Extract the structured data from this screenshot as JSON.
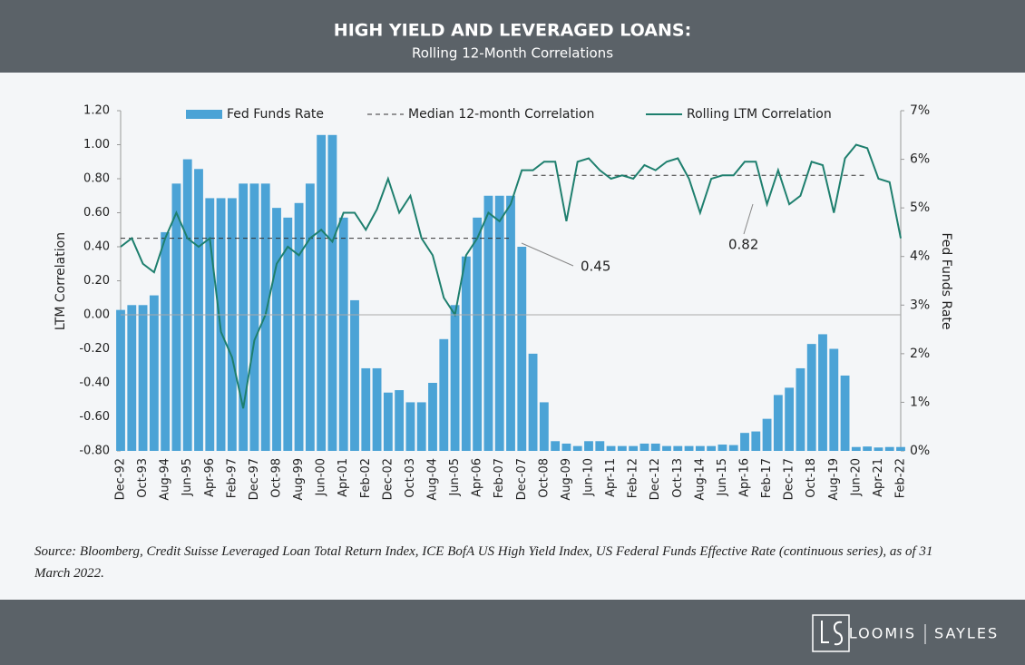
{
  "chart_data": {
    "type": "combo",
    "title": "HIGH YIELD AND LEVERAGED LOANS:",
    "subtitle": "Rolling 12-Month Correlations",
    "y_label": "LTM Correlation",
    "y2_label": "Fed Funds Rate",
    "categories": [
      "Dec-92",
      null,
      "Oct-93",
      null,
      "Aug-94",
      null,
      "Jun-95",
      null,
      "Apr-96",
      null,
      "Feb-97",
      null,
      "Dec-97",
      null,
      "Oct-98",
      null,
      "Aug-99",
      null,
      "Jun-00",
      null,
      "Apr-01",
      null,
      "Feb-02",
      null,
      "Dec-02",
      null,
      "Oct-03",
      null,
      "Aug-04",
      null,
      "Jun-05",
      null,
      "Apr-06",
      null,
      "Feb-07",
      null,
      "Dec-07",
      null,
      "Oct-08",
      null,
      "Aug-09",
      null,
      "Jun-10",
      null,
      "Apr-11",
      null,
      "Feb-12",
      null,
      "Dec-12",
      null,
      "Oct-13",
      null,
      "Aug-14",
      null,
      "Jun-15",
      null,
      "Apr-16",
      null,
      "Feb-17",
      null,
      "Dec-17",
      null,
      "Oct-18",
      null,
      "Aug-19",
      null,
      "Jun-20",
      null,
      "Apr-21",
      null,
      "Feb-22"
    ],
    "series": [
      {
        "name": "Fed Funds Rate",
        "type": "bar",
        "axis": "y2",
        "color": "#4ba3d6",
        "values": [
          2.9,
          3.0,
          3.0,
          3.2,
          4.5,
          5.5,
          6.0,
          5.8,
          5.2,
          5.2,
          5.2,
          5.5,
          5.5,
          5.5,
          5.0,
          4.8,
          5.1,
          5.5,
          6.5,
          6.5,
          4.8,
          3.1,
          1.7,
          1.7,
          1.2,
          1.25,
          1.0,
          1.0,
          1.4,
          2.3,
          3.0,
          4.0,
          4.8,
          5.25,
          5.25,
          5.25,
          4.2,
          2.0,
          1.0,
          0.2,
          0.15,
          0.1,
          0.2,
          0.2,
          0.1,
          0.1,
          0.1,
          0.15,
          0.15,
          0.1,
          0.1,
          0.1,
          0.1,
          0.1,
          0.13,
          0.12,
          0.37,
          0.4,
          0.66,
          1.15,
          1.3,
          1.7,
          2.2,
          2.4,
          2.1,
          1.55,
          0.08,
          0.09,
          0.07,
          0.08,
          0.08
        ]
      },
      {
        "name": "Median 12-month Correlation",
        "type": "line",
        "dashed": true,
        "color": "#333333",
        "values": [
          0.45,
          0.45,
          0.45,
          0.45,
          0.45,
          0.45,
          0.45,
          0.45,
          0.45,
          0.45,
          0.45,
          0.45,
          0.45,
          0.45,
          0.45,
          0.45,
          0.45,
          0.45,
          0.45,
          0.45,
          0.45,
          0.45,
          0.45,
          0.45,
          0.45,
          0.45,
          0.45,
          0.45,
          0.45,
          0.45,
          0.45,
          0.45,
          0.45,
          0.45,
          0.45,
          0.45,
          null,
          0.82,
          0.82,
          0.82,
          0.82,
          0.82,
          0.82,
          0.82,
          0.82,
          0.82,
          0.82,
          0.82,
          0.82,
          0.82,
          0.82,
          0.82,
          0.82,
          0.82,
          0.82,
          0.82,
          0.82,
          0.82,
          0.82,
          0.82,
          0.82,
          0.82,
          0.82,
          0.82,
          0.82,
          0.82,
          0.82,
          0.82,
          null,
          null,
          null
        ]
      },
      {
        "name": "Rolling LTM Correlation",
        "type": "line",
        "color": "#1e7f6e",
        "values": [
          0.4,
          0.45,
          0.3,
          0.25,
          0.45,
          0.6,
          0.45,
          0.4,
          0.45,
          -0.1,
          -0.25,
          -0.55,
          -0.15,
          0.0,
          0.3,
          0.4,
          0.35,
          0.45,
          0.5,
          0.43,
          0.6,
          0.6,
          0.5,
          0.62,
          0.8,
          0.6,
          0.7,
          0.45,
          0.35,
          0.1,
          0.0,
          0.35,
          0.45,
          0.6,
          0.55,
          0.65,
          0.85,
          0.85,
          0.9,
          0.9,
          0.55,
          0.9,
          0.92,
          0.85,
          0.8,
          0.82,
          0.8,
          0.88,
          0.85,
          0.9,
          0.92,
          0.8,
          0.6,
          0.8,
          0.82,
          0.82,
          0.9,
          0.9,
          0.65,
          0.85,
          0.65,
          0.7,
          0.9,
          0.88,
          0.6,
          0.92,
          1.0,
          0.98,
          0.8,
          0.78,
          0.45
        ]
      }
    ],
    "ylim": [
      -0.8,
      1.2
    ],
    "yticks": [
      {
        "value": -0.8,
        "label": "-0.80"
      },
      {
        "value": -0.6,
        "label": "-0.60"
      },
      {
        "value": -0.4,
        "label": "-0.40"
      },
      {
        "value": -0.2,
        "label": "-0.20"
      },
      {
        "value": 0,
        "label": "0.00"
      },
      {
        "value": 0.2,
        "label": "0.20"
      },
      {
        "value": 0.4,
        "label": "0.40"
      },
      {
        "value": 0.6,
        "label": "0.60"
      },
      {
        "value": 0.8,
        "label": "0.80"
      },
      {
        "value": 1.0,
        "label": "1.00"
      },
      {
        "value": 1.2,
        "label": "1.20"
      }
    ],
    "y2lim": [
      0,
      7
    ],
    "y2ticks": [
      {
        "value": 0,
        "label": "0%"
      },
      {
        "value": 1,
        "label": "1%"
      },
      {
        "value": 2,
        "label": "2%"
      },
      {
        "value": 3,
        "label": "3%"
      },
      {
        "value": 4,
        "label": "4%"
      },
      {
        "value": 5,
        "label": "5%"
      },
      {
        "value": 6,
        "label": "6%"
      },
      {
        "value": 7,
        "label": "7%"
      }
    ],
    "annotations": [
      {
        "text": "0.45"
      },
      {
        "text": "0.82"
      }
    ],
    "source": "Source: Bloomberg, Credit Suisse Leveraged Loan Total Return Index, ICE BofA US High Yield Index, US Federal Funds Effective Rate (continuous series), as of 31 March 2022."
  },
  "brand": [
    "LOOMIS",
    "SAYLES"
  ]
}
